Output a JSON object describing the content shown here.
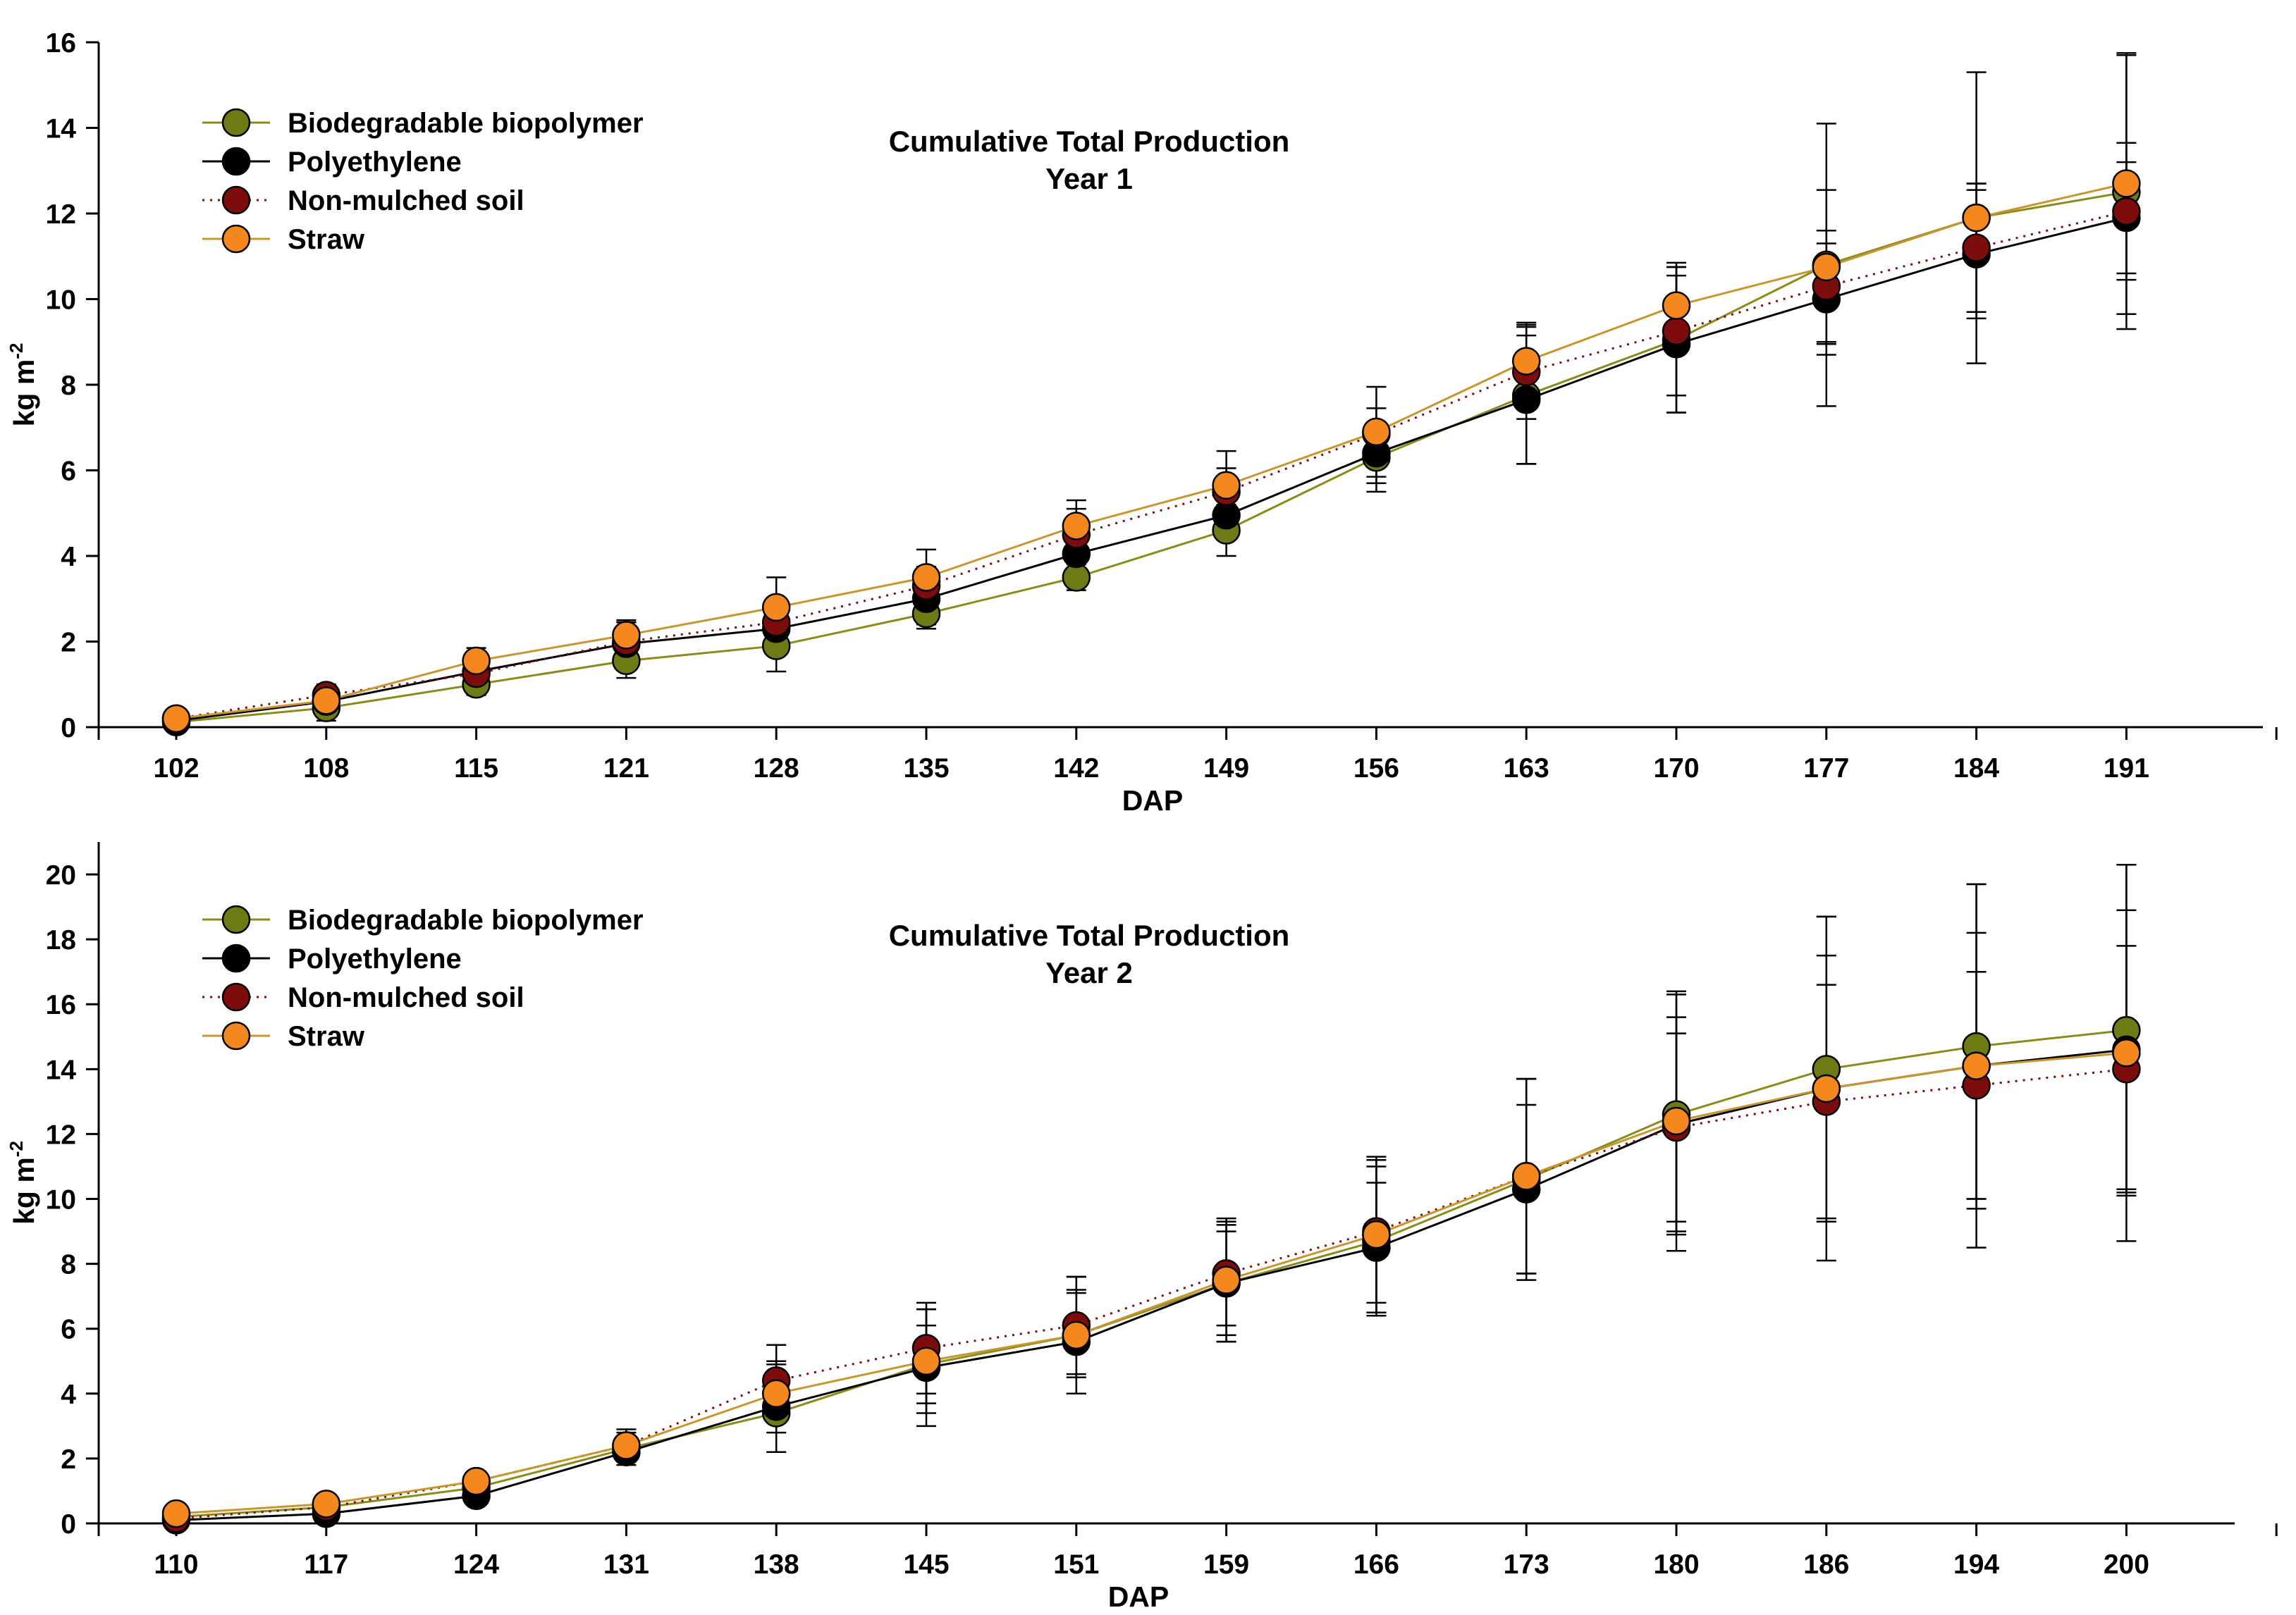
{
  "colors": {
    "biodegradable_biopolymer": "#6e7a14",
    "polyethylene": "#000000",
    "non_mulched_soil": "#7d0d0d",
    "straw": "#f4871e",
    "straw_line": "#c8962d",
    "biodegradable_line": "#8a8c1a"
  },
  "chart_data": [
    {
      "type": "line",
      "title": "Cumulative Total Production",
      "subtitle": "Year 1",
      "xlabel": "DAP",
      "ylabel": "kg m",
      "ylabel_sup": "-2",
      "ylim": [
        0,
        16
      ],
      "yticks": [
        "0",
        "2",
        "4",
        "6",
        "8",
        "10",
        "12",
        "14",
        "16"
      ],
      "categories": [
        "102",
        "108",
        "115",
        "121",
        "128",
        "135",
        "142",
        "149",
        "156",
        "163",
        "170",
        "177",
        "184",
        "191"
      ],
      "series": [
        {
          "name": "Biodegradable biopolymer",
          "key": "biodegradable_biopolymer",
          "line": "solid",
          "values": [
            0.12,
            0.45,
            1.0,
            1.55,
            1.9,
            2.65,
            3.5,
            4.6,
            6.3,
            7.75,
            9.05,
            10.8,
            11.9,
            12.5
          ],
          "errors": [
            0.1,
            0.3,
            0.25,
            0.4,
            0.6,
            0.35,
            0.3,
            0.6,
            0.8,
            1.6,
            1.7,
            3.3,
            3.4,
            3.2
          ]
        },
        {
          "name": "Polyethylene",
          "key": "polyethylene",
          "line": "solid",
          "values": [
            0.15,
            0.6,
            1.3,
            1.95,
            2.3,
            3.0,
            4.05,
            4.95,
            6.4,
            7.65,
            8.95,
            10.0,
            11.05,
            11.9
          ],
          "errors": [
            0.1,
            0.2,
            0.3,
            0.5,
            0.5,
            0.6,
            0.5,
            0.5,
            0.7,
            1.5,
            1.6,
            1.3,
            1.5,
            1.3
          ]
        },
        {
          "name": "Non-mulched soil",
          "key": "non_mulched_soil",
          "line": "dotted",
          "values": [
            0.2,
            0.75,
            1.25,
            2.0,
            2.45,
            3.3,
            4.5,
            5.5,
            6.85,
            8.3,
            9.25,
            10.3,
            11.2,
            12.05
          ],
          "errors": [
            0.1,
            0.25,
            0.35,
            0.45,
            0.5,
            0.45,
            0.6,
            0.55,
            0.6,
            1.1,
            1.5,
            1.3,
            1.5,
            1.6
          ]
        },
        {
          "name": "Straw",
          "key": "straw",
          "line": "solid",
          "values": [
            0.2,
            0.62,
            1.55,
            2.15,
            2.8,
            3.5,
            4.7,
            5.65,
            6.9,
            8.55,
            9.85,
            10.75,
            11.9,
            12.7
          ],
          "errors": [
            0.1,
            0.3,
            0.3,
            0.35,
            0.7,
            0.65,
            0.6,
            0.8,
            1.05,
            0.9,
            1.0,
            1.8,
            0.8,
            3.05
          ]
        }
      ],
      "legend": [
        "Biodegradable biopolymer",
        "Polyethylene",
        "Non-mulched soil",
        "Straw"
      ]
    },
    {
      "type": "line",
      "title": "Cumulative Total Production",
      "subtitle": "Year 2",
      "xlabel": "DAP",
      "ylabel": "kg m",
      "ylabel_sup": "-2",
      "ylim": [
        0,
        21
      ],
      "yticks": [
        "0",
        "2",
        "4",
        "6",
        "8",
        "10",
        "12",
        "14",
        "16",
        "18",
        "20"
      ],
      "categories": [
        "110",
        "117",
        "124",
        "131",
        "138",
        "145",
        "151",
        "159",
        "166",
        "173",
        "180",
        "186",
        "194",
        "200"
      ],
      "series": [
        {
          "name": "Biodegradable biopolymer",
          "key": "biodegradable_biopolymer",
          "line": "solid",
          "values": [
            0.2,
            0.5,
            1.1,
            2.3,
            3.4,
            4.9,
            5.8,
            7.4,
            8.7,
            10.6,
            12.6,
            14.0,
            14.7,
            15.2
          ],
          "errors": [
            0.1,
            0.2,
            0.3,
            0.3,
            0.6,
            1.2,
            1.3,
            1.8,
            2.3,
            3.1,
            3.7,
            4.7,
            5.0,
            5.1
          ]
        },
        {
          "name": "Polyethylene",
          "key": "polyethylene",
          "line": "solid",
          "values": [
            0.1,
            0.3,
            0.85,
            2.2,
            3.6,
            4.8,
            5.6,
            7.4,
            8.5,
            10.3,
            12.3,
            13.4,
            14.1,
            14.6
          ],
          "errors": [
            0.1,
            0.15,
            0.25,
            0.4,
            1.4,
            1.8,
            1.6,
            1.6,
            2.0,
            2.6,
            3.3,
            4.1,
            4.1,
            4.3
          ]
        },
        {
          "name": "Non-mulched soil",
          "key": "non_mulched_soil",
          "line": "dotted",
          "values": [
            0.15,
            0.5,
            1.3,
            2.4,
            4.4,
            5.4,
            6.1,
            7.7,
            9.0,
            10.7,
            12.2,
            13.0,
            13.5,
            14.0
          ],
          "errors": [
            0.1,
            0.2,
            0.3,
            0.5,
            1.1,
            1.4,
            1.5,
            1.6,
            2.2,
            3.0,
            2.9,
            3.6,
            3.5,
            3.8
          ]
        },
        {
          "name": "Straw",
          "key": "straw",
          "line": "solid",
          "values": [
            0.3,
            0.6,
            1.3,
            2.4,
            4.0,
            5.0,
            5.8,
            7.5,
            8.9,
            10.7,
            12.4,
            13.4,
            14.1,
            14.5
          ],
          "errors": [
            0.1,
            0.2,
            0.3,
            0.4,
            0.9,
            1.6,
            1.8,
            1.9,
            2.4,
            3.0,
            4.0,
            5.3,
            5.6,
            5.8
          ]
        }
      ],
      "legend": [
        "Biodegradable biopolymer",
        "Polyethylene",
        "Non-mulched soil",
        "Straw"
      ]
    }
  ]
}
